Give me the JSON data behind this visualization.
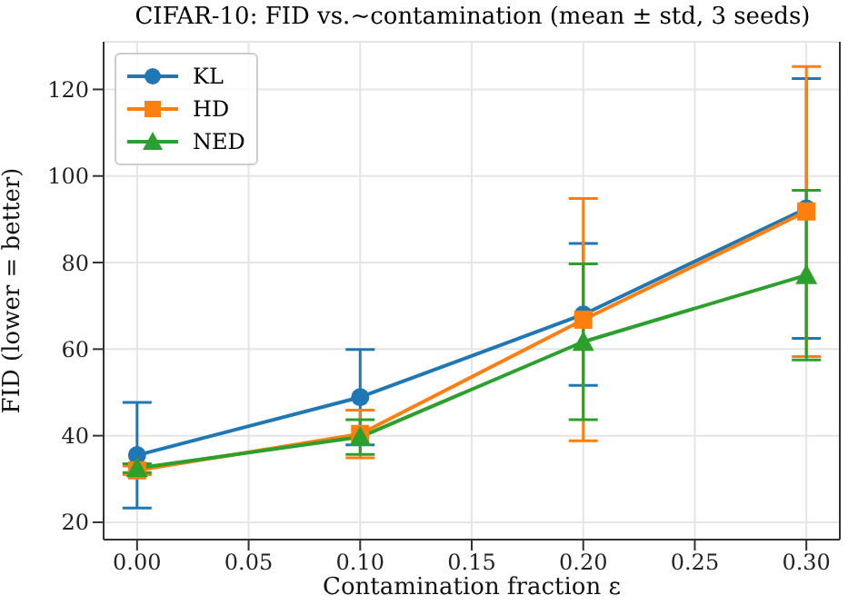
{
  "chart_data": {
    "type": "line",
    "title": "CIFAR-10: FID vs.~contamination (mean ± std, 3 seeds)",
    "xlabel": "Contamination fraction ε",
    "ylabel": "FID (lower = better)",
    "x": [
      0,
      0.1,
      0.2,
      0.3
    ],
    "series": [
      {
        "name": "KL",
        "color": "#1f77b4",
        "marker": "circle",
        "values": [
          35.5,
          48.9,
          68,
          92.5
        ],
        "errors": [
          12.2,
          11,
          16.4,
          30
        ]
      },
      {
        "name": "HD",
        "color": "#ff7f0e",
        "marker": "square",
        "values": [
          32,
          40.4,
          66.8,
          91.8
        ],
        "errors": [
          1,
          5.5,
          28,
          33.5
        ]
      },
      {
        "name": "NED",
        "color": "#2ca02c",
        "marker": "triangle",
        "values": [
          32.5,
          39.7,
          61.7,
          77.1
        ],
        "errors": [
          1,
          4,
          18,
          19.6
        ]
      }
    ],
    "xlim": [
      -0.015,
      0.315
    ],
    "ylim": [
      16,
      131
    ],
    "xticks": [
      {
        "value": 0,
        "label": "0.00"
      },
      {
        "value": 0.05,
        "label": "0.05"
      },
      {
        "value": 0.1,
        "label": "0.10"
      },
      {
        "value": 0.15,
        "label": "0.15"
      },
      {
        "value": 0.2,
        "label": "0.20"
      },
      {
        "value": 0.25,
        "label": "0.25"
      },
      {
        "value": 0.3,
        "label": "0.30"
      }
    ],
    "yticks": [
      20,
      40,
      60,
      80,
      100,
      120
    ],
    "grid": true,
    "legend": "top left",
    "line_style": "solid"
  }
}
